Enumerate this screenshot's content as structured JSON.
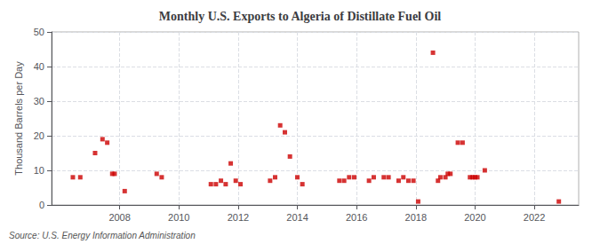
{
  "chart_data": {
    "type": "scatter",
    "title": "Monthly U.S. Exports to Algeria of Distillate Fuel Oil",
    "ylabel": "Thousand Barrels per Day",
    "source": "Source: U.S. Energy Information Administration",
    "x": [
      2006.42,
      2006.67,
      2007.17,
      2007.42,
      2007.58,
      2007.75,
      2007.83,
      2008.17,
      2009.25,
      2009.42,
      2011.08,
      2011.25,
      2011.42,
      2011.58,
      2011.75,
      2011.92,
      2012.08,
      2013.08,
      2013.25,
      2013.42,
      2013.58,
      2013.75,
      2014.0,
      2014.17,
      2015.42,
      2015.58,
      2015.75,
      2015.92,
      2016.42,
      2016.58,
      2016.92,
      2017.08,
      2017.42,
      2017.58,
      2017.75,
      2017.92,
      2018.08,
      2018.58,
      2018.75,
      2018.83,
      2019.0,
      2019.08,
      2019.17,
      2019.42,
      2019.58,
      2019.83,
      2019.92,
      2020.0,
      2020.08,
      2020.33,
      2022.83
    ],
    "values": [
      8,
      8,
      15,
      19,
      18,
      9,
      9,
      4,
      9,
      8,
      6,
      6,
      7,
      6,
      12,
      7,
      6,
      7,
      8,
      23,
      21,
      14,
      8,
      6,
      7,
      7,
      8,
      8,
      7,
      8,
      8,
      8,
      7,
      8,
      7,
      7,
      1,
      44,
      7,
      8,
      8,
      9,
      9,
      18,
      18,
      8,
      8,
      8,
      8,
      10,
      1
    ],
    "color": "#cc0000",
    "marker": "square",
    "xlim": [
      2005.7,
      2023.5
    ],
    "xticks": [
      2008,
      2010,
      2012,
      2014,
      2016,
      2018,
      2020,
      2022
    ],
    "ylim": [
      0,
      50
    ],
    "yticks": [
      0,
      10,
      20,
      30,
      40,
      50
    ],
    "grid": true
  }
}
